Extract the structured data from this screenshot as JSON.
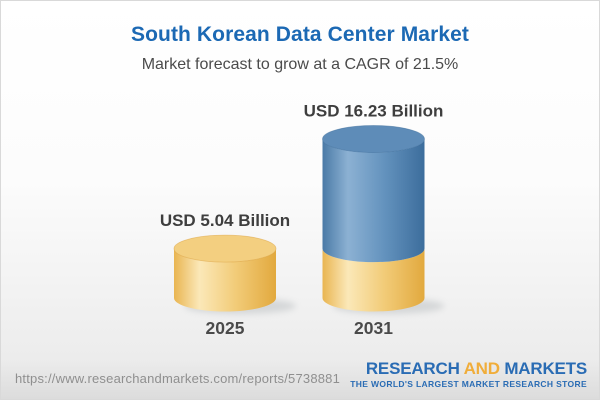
{
  "header": {
    "title": "South Korean Data Center Market",
    "subtitle": "Market forecast to grow at a CAGR of 21.5%",
    "title_color": "#1c69b4",
    "subtitle_color": "#4b4b4b"
  },
  "chart_data": {
    "type": "bar",
    "variant": "3d-cylinder-stacked",
    "title": "South Korean Data Center Market",
    "subtitle": "Market forecast to grow at a CAGR of 21.5%",
    "categories": [
      "2025",
      "2031"
    ],
    "totals": [
      5.04,
      16.23
    ],
    "total_labels": [
      "USD 5.04 Billion",
      "USD 16.23 Billion"
    ],
    "series": [
      {
        "name": "2025 base segment",
        "values": [
          5.04,
          5.04
        ],
        "color_key": "yellow"
      },
      {
        "name": "growth to 2031 segment",
        "values": [
          0,
          11.19
        ],
        "color_key": "blue"
      }
    ],
    "unit": "USD Billion",
    "cagr_percent": 21.5,
    "ylim": [
      0,
      16.23
    ],
    "grid": false,
    "legend": "none",
    "axes_hidden": true,
    "value_label_color": "#3e3e3e",
    "category_label_color": "#4a4a4a",
    "colors": {
      "yellow": {
        "edge": "#e9b551",
        "highlight": "#fbe8b8",
        "mid": "#f2cc79",
        "dark": "#e2a93e",
        "top": "#f3cf80",
        "rim": "#dda33e"
      },
      "blue": {
        "edge": "#4a7aa6",
        "highlight": "#8cb1d3",
        "mid": "#6493be",
        "dark": "#3c6d9c",
        "top": "#5e8cb8",
        "rim": "#3f6f9d"
      }
    }
  },
  "footer": {
    "url": "https://www.researchandmarkets.com/reports/5738881",
    "logo": {
      "part1": "RESEARCH",
      "part2": "AND",
      "part3": "MARKETS",
      "tagline": "THE WORLD'S LARGEST MARKET RESEARCH STORE",
      "blue": "#2a6cb4",
      "orange": "#f0ad3a"
    }
  }
}
